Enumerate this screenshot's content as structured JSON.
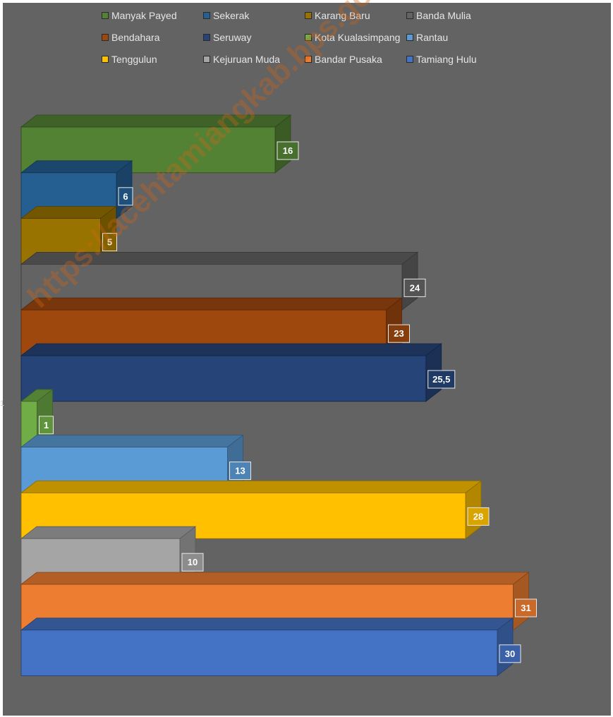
{
  "watermark": "https://acehtamiangkab.bps.go.id",
  "chart_data": {
    "type": "bar",
    "orientation": "horizontal",
    "style": "3d",
    "legend_position": "top",
    "grid": false,
    "xlim": [
      0,
      33
    ],
    "y_tick_label": "1",
    "categories": [
      "Manyak Payed",
      "Sekerak",
      "Karang Baru",
      "Banda Mulia",
      "Bendahara",
      "Seruway",
      "Kota Kualasimpang",
      "Rantau",
      "Tenggulun",
      "Kejuruan Muda",
      "Bandar Pusaka",
      "Tamiang Hulu"
    ],
    "series": [
      {
        "name": "Manyak Payed",
        "value": 16,
        "label": "16",
        "color": "#548235"
      },
      {
        "name": "Sekerak",
        "value": 6,
        "label": "6",
        "color": "#255e91"
      },
      {
        "name": "Karang Baru",
        "value": 5,
        "label": "5",
        "color": "#997300"
      },
      {
        "name": "Banda Mulia",
        "value": 24,
        "label": "24",
        "color": "#636363"
      },
      {
        "name": "Bendahara",
        "value": 23,
        "label": "23",
        "color": "#9e480e"
      },
      {
        "name": "Seruway",
        "value": 25.5,
        "label": "25,5",
        "color": "#264478"
      },
      {
        "name": "Kota Kualasimpang",
        "value": 1,
        "label": "1",
        "color": "#70ad47"
      },
      {
        "name": "Rantau",
        "value": 13,
        "label": "13",
        "color": "#5b9bd5"
      },
      {
        "name": "Tenggulun",
        "value": 28,
        "label": "28",
        "color": "#ffc000"
      },
      {
        "name": "Kejuruan Muda",
        "value": 10,
        "label": "10",
        "color": "#a5a5a5"
      },
      {
        "name": "Bandar Pusaka",
        "value": 31,
        "label": "31",
        "color": "#ed7d31"
      },
      {
        "name": "Tamiang Hulu",
        "value": 30,
        "label": "30",
        "color": "#4472c4"
      }
    ]
  }
}
